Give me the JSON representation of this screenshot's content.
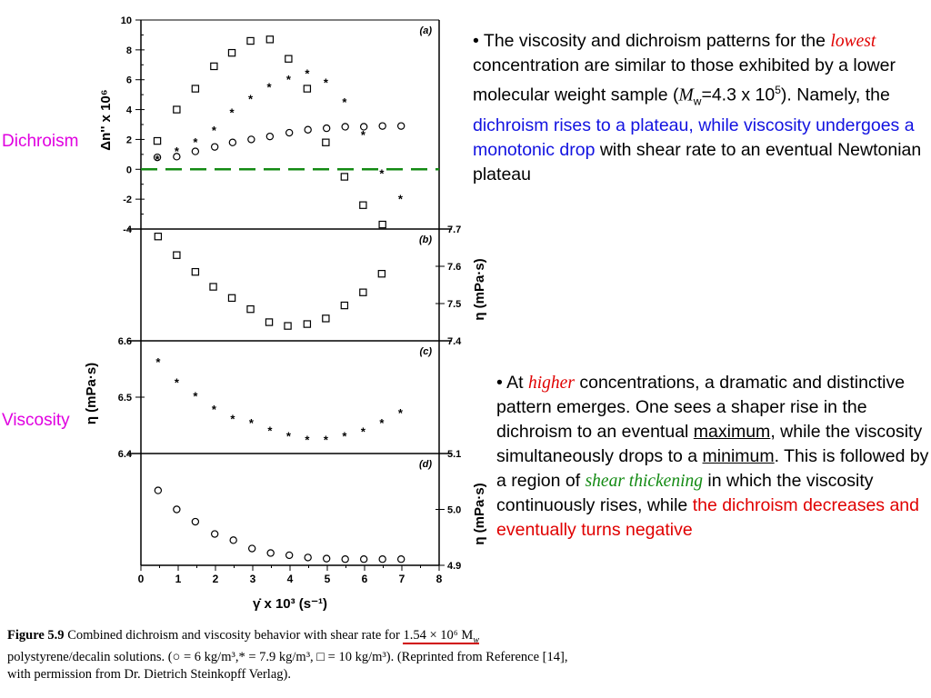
{
  "labels": {
    "dichroism": "Dichroism",
    "viscosity": "Viscosity"
  },
  "bullet1": {
    "p1": "The viscosity and dichroism patterns for the ",
    "lowest": "lowest",
    "p2": " concentration are similar to those exhibited by a lower molecular weight sample (",
    "mw_m": "M",
    "mw_sub": "w",
    "mw_val": "=4.3 x 10",
    "mw_exp": "5",
    "p3": "). Namely, the ",
    "blue": "dichroism rises to a plateau, while viscosity undergoes a monotonic drop",
    "p4": " with shear rate to an eventual Newtonian plateau"
  },
  "bullet2": {
    "p1": "At ",
    "higher": "higher",
    "p2": " concentrations, a dramatic and distinctive pattern emerges. One sees a shaper rise in the dichroism to an eventual ",
    "maximum": "maximum",
    "p3": ", while the viscosity simultaneously drops to a ",
    "minimum": "minimum",
    "p4": ". This is followed by a region of ",
    "shear_thickening": "shear thickening",
    "p5": " in which the viscosity continuously rises, while ",
    "red": "the dichroism decreases and eventually turns negative"
  },
  "caption": {
    "fig": "Figure 5.9",
    "t1": " Combined dichroism and viscosity behavior with shear rate for ",
    "mw": "1.54 × 10⁶ M",
    "mw_sub": "w",
    "t2": " polystyrene/decalin solutions. (○ = 6 kg/m³,* = 7.9 kg/m³, □ = 10 kg/m³). (Reprinted from Reference [14], with permission from Dr. Dietrich Steinkopff Verlag)."
  },
  "chart_data": {
    "type": "scatter",
    "x_label": "γ̇ x 10³ (s⁻¹)",
    "x_ticks": [
      "0",
      "1",
      "2",
      "3",
      "4",
      "5",
      "6",
      "7",
      "8"
    ],
    "xlim": [
      0,
      8
    ],
    "marker_legend": {
      "circle": "6 kg/m³",
      "star": "7.9 kg/m³",
      "square": "10 kg/m³"
    },
    "panels": [
      {
        "id": "(a)",
        "y_label": "Δn'' x 10⁶",
        "ylim": [
          -4,
          10
        ],
        "y_ticks": [
          "10",
          "8",
          "6",
          "4",
          "2",
          "0",
          "-2",
          "-4"
        ],
        "reference_line": {
          "y": 0,
          "color": "#138a13",
          "style": "dashed"
        },
        "series": [
          {
            "marker": "circle",
            "x": [
              0.44,
              0.96,
              1.46,
              1.98,
              2.46,
              2.96,
              3.46,
              3.98,
              4.48,
              4.98,
              5.48,
              5.98,
              6.48,
              6.98
            ],
            "y": [
              0.8,
              0.85,
              1.2,
              1.5,
              1.8,
              2.0,
              2.2,
              2.45,
              2.65,
              2.75,
              2.85,
              2.85,
              2.9,
              2.9
            ]
          },
          {
            "marker": "star",
            "x": [
              0.44,
              0.96,
              1.46,
              1.96,
              2.44,
              2.94,
              3.44,
              3.96,
              4.46,
              4.96,
              5.46,
              5.96,
              6.46,
              6.96
            ],
            "y": [
              0.65,
              1.2,
              1.8,
              2.6,
              3.8,
              4.7,
              5.5,
              6.0,
              6.4,
              5.8,
              4.5,
              2.3,
              -0.3,
              -2.0
            ]
          },
          {
            "marker": "square",
            "x": [
              0.44,
              0.96,
              1.46,
              1.96,
              2.44,
              2.94,
              3.46,
              3.96,
              4.46,
              4.96,
              5.46,
              5.96,
              6.48
            ],
            "y": [
              1.9,
              4.0,
              5.4,
              6.9,
              7.8,
              8.6,
              8.7,
              7.4,
              5.4,
              1.8,
              -0.5,
              -2.4,
              -3.7
            ]
          }
        ]
      },
      {
        "id": "(b)",
        "y_label": "η (mPa·s)",
        "y_axis_side": "right",
        "ylim": [
          7.4,
          7.7
        ],
        "y_ticks": [
          "7.7",
          "7.6",
          "7.5",
          "7.4"
        ],
        "series": [
          {
            "marker": "square",
            "x": [
              0.46,
              0.96,
              1.46,
              1.94,
              2.44,
              2.94,
              3.44,
              3.94,
              4.46,
              4.96,
              5.46,
              5.96,
              6.46
            ],
            "y": [
              7.68,
              7.63,
              7.585,
              7.545,
              7.515,
              7.485,
              7.45,
              7.44,
              7.445,
              7.46,
              7.495,
              7.53,
              7.58
            ]
          }
        ]
      },
      {
        "id": "(c)",
        "y_label": "η (mPa·s)",
        "ylim": [
          6.4,
          6.6
        ],
        "y_ticks": [
          "6.6",
          "6.5",
          "6.4"
        ],
        "series": [
          {
            "marker": "star",
            "x": [
              0.46,
              0.96,
              1.46,
              1.96,
              2.46,
              2.96,
              3.46,
              3.96,
              4.46,
              4.96,
              5.46,
              5.96,
              6.46,
              6.96
            ],
            "y": [
              6.562,
              6.526,
              6.502,
              6.478,
              6.461,
              6.454,
              6.44,
              6.431,
              6.424,
              6.424,
              6.431,
              6.439,
              6.454,
              6.472
            ]
          }
        ]
      },
      {
        "id": "(d)",
        "y_label": "η (mPa·s)",
        "y_axis_side": "right",
        "ylim": [
          4.9,
          5.1
        ],
        "y_ticks": [
          "5.1",
          "5.0",
          "4.9"
        ],
        "series": [
          {
            "marker": "circle",
            "x": [
              0.46,
              0.96,
              1.46,
              1.98,
              2.48,
              2.98,
              3.48,
              3.98,
              4.48,
              4.98,
              5.48,
              5.98,
              6.48,
              6.98
            ],
            "y": [
              5.034,
              5.0,
              4.978,
              4.956,
              4.945,
              4.93,
              4.922,
              4.918,
              4.914,
              4.912,
              4.911,
              4.911,
              4.911,
              4.911
            ]
          }
        ]
      }
    ]
  }
}
